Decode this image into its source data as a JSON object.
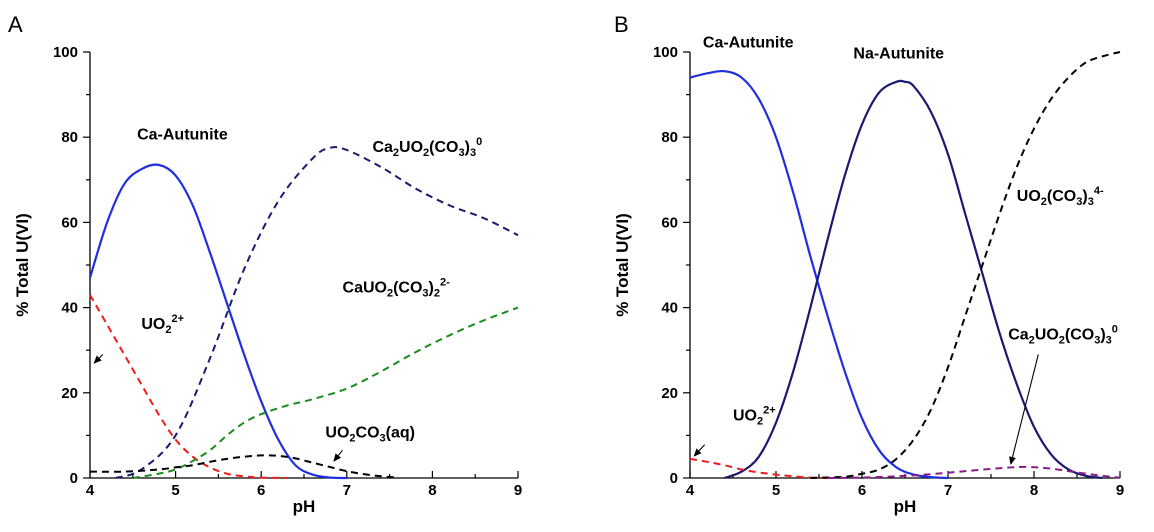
{
  "chart_data": [
    {
      "panel": "A",
      "type": "line",
      "xlabel": "pH",
      "ylabel": "% Total U(VI)",
      "xlim": [
        4,
        9
      ],
      "ylim": [
        0,
        100
      ],
      "xticks": [
        4,
        5,
        6,
        7,
        8,
        9
      ],
      "yticks": [
        0,
        20,
        40,
        60,
        80,
        100
      ],
      "colors": {
        "solid_blue": "#1f2fe0",
        "navy": "#1a1a6e",
        "red": "#ee1c1c",
        "green": "#1a8c1a",
        "black": "#000000"
      },
      "series": [
        {
          "style": "solid_blue",
          "dashed": false,
          "x": [
            4.0,
            4.2,
            4.4,
            4.6,
            4.8,
            5.0,
            5.2,
            5.4,
            5.6,
            5.8,
            6.0,
            6.2,
            6.4,
            6.6,
            6.8,
            7.0
          ],
          "y": [
            47,
            60,
            69,
            72.5,
            73.5,
            71,
            64,
            53,
            41,
            29,
            18,
            9,
            3,
            0.8,
            0.1,
            0
          ]
        },
        {
          "style": "navy",
          "dashed": true,
          "x": [
            4.3,
            4.6,
            5.0,
            5.4,
            5.8,
            6.2,
            6.6,
            6.8,
            7.0,
            7.4,
            7.8,
            8.2,
            8.6,
            9.0
          ],
          "y": [
            0,
            2,
            10,
            28,
            49,
            65,
            75,
            77.5,
            77,
            73,
            68,
            64,
            61,
            57
          ]
        },
        {
          "style": "red",
          "dashed": true,
          "x": [
            4.0,
            4.2,
            4.4,
            4.6,
            4.8,
            5.0,
            5.2,
            5.4,
            5.6,
            5.8,
            6.0,
            6.3
          ],
          "y": [
            43,
            36,
            29,
            22,
            15,
            9,
            5,
            2.5,
            1,
            0.4,
            0.1,
            0
          ]
        },
        {
          "style": "green",
          "dashed": true,
          "x": [
            4.5,
            4.8,
            5.0,
            5.2,
            5.4,
            5.6,
            5.8,
            6.0,
            6.3,
            6.6,
            7.0,
            7.4,
            7.8,
            8.2,
            8.6,
            9.0
          ],
          "y": [
            0,
            1,
            2,
            4,
            6.5,
            10,
            13,
            15,
            17,
            18.5,
            21,
            25,
            29.5,
            33.5,
            37,
            40
          ]
        },
        {
          "style": "black",
          "dashed": true,
          "x": [
            4.0,
            4.4,
            4.8,
            5.0,
            5.2,
            5.4,
            5.6,
            5.8,
            6.0,
            6.2,
            6.4,
            6.6,
            6.8,
            7.0,
            7.2,
            7.4,
            7.6
          ],
          "y": [
            1.5,
            1.5,
            2,
            2.5,
            3,
            3.8,
            4.5,
            5,
            5.3,
            5.2,
            4.6,
            3.6,
            2.6,
            1.6,
            0.9,
            0.4,
            0.1
          ]
        }
      ],
      "annotations": [
        {
          "text": "Ca-Autunite",
          "sub": "",
          "sup": "",
          "tail": "",
          "x": 4.55,
          "y": 79.5
        },
        {
          "text": "Ca",
          "sub": "2",
          "mid": "UO",
          "sub2": "2",
          "tail": "(CO",
          "sub3": "3",
          "end": ")",
          "sub4": "3",
          "sup": "0",
          "x": 7.3,
          "y": 76.5
        },
        {
          "text": "CaUO",
          "sub": "2",
          "tail": "(CO",
          "sub3": "3",
          "end": ")",
          "sub4": "2",
          "sup": "2-",
          "x": 6.95,
          "y": 43.5
        },
        {
          "text": "UO",
          "sub": "2",
          "sup": "2+",
          "x": 4.6,
          "y": 35
        },
        {
          "text": "UO",
          "sub": "2",
          "tail": "CO",
          "sub3": "3",
          "end": "(aq)",
          "x": 6.75,
          "y": 9.5
        }
      ]
    },
    {
      "panel": "B",
      "type": "line",
      "xlabel": "pH",
      "ylabel": "% Total U(VI)",
      "xlim": [
        4,
        9
      ],
      "ylim": [
        0,
        100
      ],
      "xticks": [
        4,
        5,
        6,
        7,
        8,
        9
      ],
      "yticks": [
        0,
        20,
        40,
        60,
        80,
        100
      ],
      "colors": {
        "solid_blue": "#1f2fe0",
        "navy": "#1a1a6e",
        "red": "#ee1c1c",
        "purple": "#8b1a8b",
        "black": "#000000"
      },
      "series": [
        {
          "style": "solid_blue",
          "dashed": false,
          "x": [
            4.0,
            4.2,
            4.4,
            4.6,
            4.8,
            5.0,
            5.2,
            5.4,
            5.6,
            5.8,
            6.0,
            6.2,
            6.4,
            6.6,
            6.8,
            7.0
          ],
          "y": [
            94,
            95,
            95.5,
            94,
            89,
            80,
            67,
            52,
            38,
            25,
            14,
            6.5,
            2.5,
            0.8,
            0.2,
            0
          ]
        },
        {
          "style": "navy",
          "dashed": false,
          "x": [
            4.4,
            4.6,
            4.8,
            5.0,
            5.2,
            5.4,
            5.6,
            5.8,
            6.0,
            6.2,
            6.4,
            6.5,
            6.6,
            6.8,
            7.0,
            7.2,
            7.4,
            7.6,
            7.8,
            8.0,
            8.2,
            8.4,
            8.6,
            8.8
          ],
          "y": [
            0,
            1.5,
            5,
            13,
            25,
            40,
            56,
            71,
            83,
            90.5,
            93,
            93,
            92,
            86,
            76,
            62,
            48,
            34,
            22,
            12,
            5.5,
            2,
            0.5,
            0
          ]
        },
        {
          "style": "red",
          "dashed": true,
          "x": [
            4.0,
            4.2,
            4.4,
            4.6,
            4.8,
            5.0,
            5.2,
            5.4,
            5.6
          ],
          "y": [
            4.5,
            3.8,
            3,
            2,
            1.3,
            0.8,
            0.4,
            0.1,
            0
          ]
        },
        {
          "style": "black",
          "dashed": true,
          "x": [
            5.4,
            5.8,
            6.0,
            6.2,
            6.4,
            6.6,
            6.8,
            7.0,
            7.2,
            7.4,
            7.6,
            7.8,
            8.0,
            8.2,
            8.4,
            8.6,
            8.8,
            9.0
          ],
          "y": [
            0,
            0.3,
            1,
            2,
            4.5,
            9,
            16,
            26,
            38,
            50,
            62,
            73,
            82,
            89,
            94,
            97.5,
            99,
            100
          ]
        },
        {
          "style": "purple",
          "dashed": true,
          "x": [
            5.6,
            6.0,
            6.4,
            6.8,
            7.2,
            7.6,
            7.9,
            8.2,
            8.5,
            8.8,
            9.0
          ],
          "y": [
            0,
            0.1,
            0.4,
            0.9,
            1.6,
            2.3,
            2.6,
            2.2,
            1.3,
            0.5,
            0.1
          ]
        }
      ],
      "annotations": [
        {
          "text": "Ca-Autunite",
          "sub": "",
          "sup": "",
          "x": 4.15,
          "y": 101
        },
        {
          "text": "Na-Autunite",
          "sub": "",
          "sup": "",
          "x": 5.9,
          "y": 98.5
        },
        {
          "text": "UO",
          "sub": "2",
          "tail": "(CO",
          "sub3": "3",
          "end": ")",
          "sub4": "3",
          "sup": "4-",
          "x": 7.8,
          "y": 65
        },
        {
          "text": "Ca",
          "sub": "2",
          "mid": "UO",
          "sub2": "2",
          "tail": "(CO",
          "sub3": "3",
          "end": ")",
          "sub4": "3",
          "sup": "0",
          "x": 7.7,
          "y": 32.5
        },
        {
          "text": "UO",
          "sub": "2",
          "sup": "2+",
          "x": 4.5,
          "y": 13.5
        }
      ]
    }
  ]
}
